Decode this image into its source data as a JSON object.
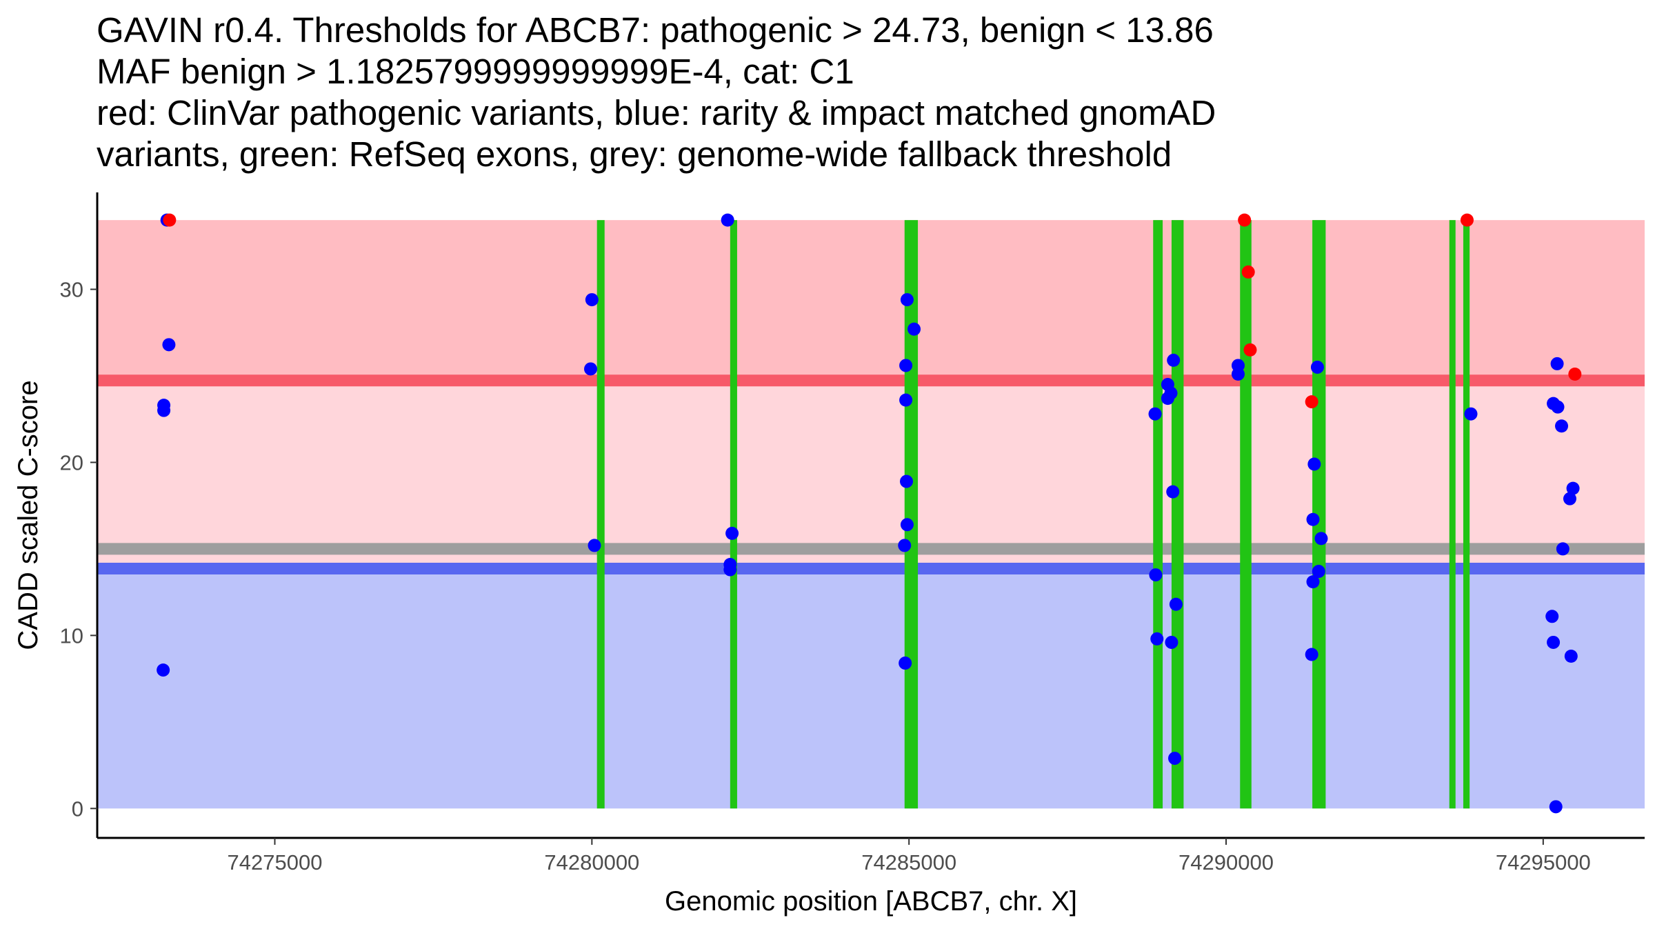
{
  "chart_data": {
    "type": "scatter",
    "title_lines": [
      "GAVIN r0.4. Thresholds for ABCB7: pathogenic > 24.73, benign < 13.86",
      "MAF benign > 1.1825799999999999E-4, cat: C1",
      "red: ClinVar pathogenic variants, blue: rarity & impact matched gnomAD",
      "variants, green: RefSeq exons, grey: genome-wide fallback threshold"
    ],
    "xlabel": "Genomic position [ABCB7, chr. X]",
    "ylabel": "CADD scaled C-score",
    "xlim": [
      74272200,
      74296600
    ],
    "ylim": [
      -1.7,
      35.6
    ],
    "x_ticks": [
      74275000,
      74280000,
      74285000,
      74290000,
      74295000
    ],
    "x_tick_labels": [
      "74275000",
      "74280000",
      "74285000",
      "74290000",
      "74295000"
    ],
    "y_ticks": [
      0,
      10,
      20,
      30
    ],
    "y_tick_labels": [
      "0",
      "10",
      "20",
      "30"
    ],
    "grid": false,
    "colors": {
      "pathogenic_zone": "#ffbcc2",
      "intermediate_zone": "#ffd6db",
      "benign_zone": "#bcc3fa",
      "pathogenic_line": "#f75a69",
      "benign_line": "#5867f0",
      "fallback_line": "#9e9e9e",
      "exon": "#21c414",
      "pathogenic_point": "#ff0000",
      "benign_point": "#0000ff"
    },
    "zones": {
      "pathogenic": {
        "from": 24.73,
        "to": 34
      },
      "intermediate": {
        "from": 13.86,
        "to": 24.73
      },
      "benign": {
        "from": 0,
        "to": 13.86
      }
    },
    "threshold_lines": {
      "pathogenic": 24.73,
      "benign": 13.86,
      "fallback": 15.0
    },
    "exons": [
      [
        74280080,
        74280200
      ],
      [
        74282180,
        74282290
      ],
      [
        74284930,
        74285140
      ],
      [
        74288850,
        74289000
      ],
      [
        74289140,
        74289330
      ],
      [
        74290220,
        74290400
      ],
      [
        74291360,
        74291570
      ],
      [
        74293520,
        74293600
      ],
      [
        74293740,
        74293840
      ]
    ],
    "series": [
      {
        "name": "ClinVar pathogenic variants",
        "points": [
          [
            74273340,
            34.0
          ],
          [
            74290290,
            34.0
          ],
          [
            74290350,
            31.0
          ],
          [
            74290380,
            26.5
          ],
          [
            74291350,
            23.5
          ],
          [
            74293800,
            34.0
          ],
          [
            74295500,
            25.1
          ]
        ]
      },
      {
        "name": "rarity & impact matched gnomAD variants",
        "points": [
          [
            74273300,
            34.0
          ],
          [
            74273330,
            26.8
          ],
          [
            74273250,
            23.3
          ],
          [
            74273250,
            23.0
          ],
          [
            74273240,
            8.0
          ],
          [
            74280000,
            29.4
          ],
          [
            74279980,
            25.4
          ],
          [
            74280040,
            15.2
          ],
          [
            74282140,
            34.0
          ],
          [
            74282210,
            15.9
          ],
          [
            74282180,
            14.1
          ],
          [
            74282180,
            13.8
          ],
          [
            74284970,
            29.4
          ],
          [
            74285080,
            27.7
          ],
          [
            74284950,
            25.6
          ],
          [
            74284950,
            23.6
          ],
          [
            74284960,
            18.9
          ],
          [
            74284970,
            16.4
          ],
          [
            74284930,
            15.2
          ],
          [
            74284940,
            8.4
          ],
          [
            74289170,
            25.9
          ],
          [
            74289080,
            24.5
          ],
          [
            74289130,
            24.0
          ],
          [
            74289080,
            23.7
          ],
          [
            74288880,
            22.8
          ],
          [
            74289160,
            18.3
          ],
          [
            74288890,
            13.5
          ],
          [
            74289210,
            11.8
          ],
          [
            74288910,
            9.8
          ],
          [
            74289140,
            9.6
          ],
          [
            74289190,
            2.9
          ],
          [
            74290190,
            25.6
          ],
          [
            74290190,
            25.1
          ],
          [
            74291440,
            25.5
          ],
          [
            74291390,
            19.9
          ],
          [
            74291370,
            16.7
          ],
          [
            74291500,
            15.6
          ],
          [
            74291460,
            13.7
          ],
          [
            74291370,
            13.1
          ],
          [
            74291350,
            8.9
          ],
          [
            74293860,
            22.8
          ],
          [
            74295220,
            25.7
          ],
          [
            74295160,
            23.4
          ],
          [
            74295230,
            23.2
          ],
          [
            74295290,
            22.1
          ],
          [
            74295470,
            18.5
          ],
          [
            74295420,
            17.9
          ],
          [
            74295310,
            15.0
          ],
          [
            74295140,
            11.1
          ],
          [
            74295160,
            9.6
          ],
          [
            74295440,
            8.8
          ],
          [
            74295200,
            0.1
          ]
        ]
      }
    ]
  }
}
